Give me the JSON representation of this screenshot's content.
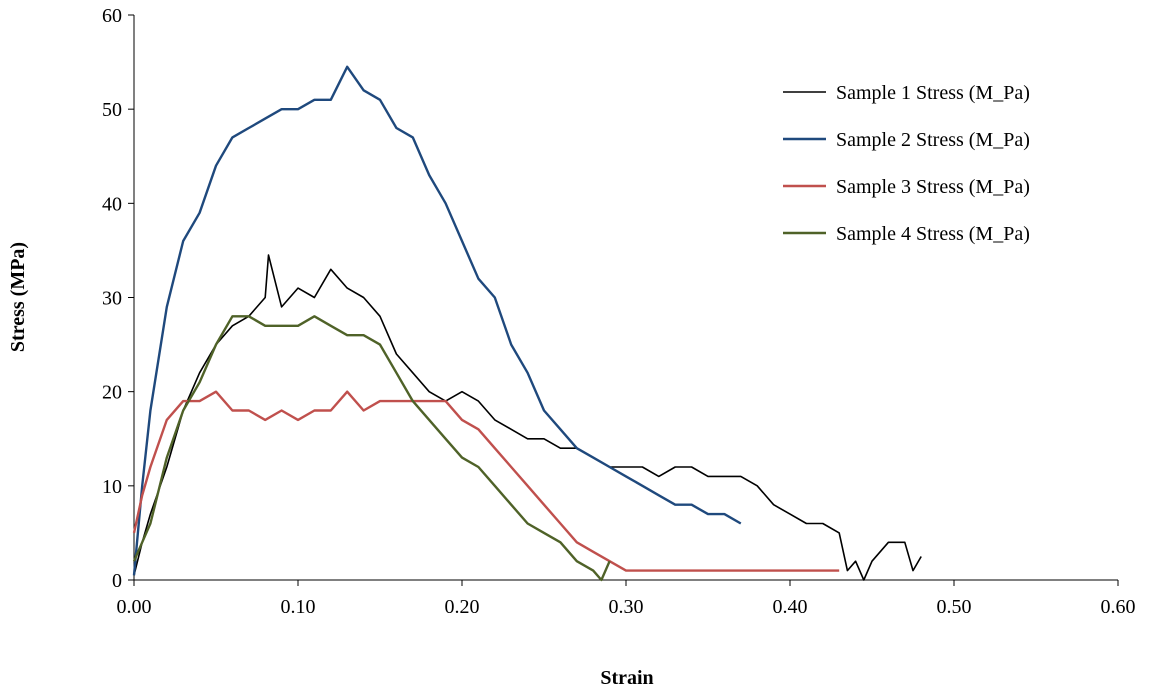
{
  "chart_data": {
    "type": "line",
    "xlabel": "Strain",
    "ylabel": "Stress (MPa)",
    "xlim": [
      0,
      0.6
    ],
    "ylim": [
      0,
      60
    ],
    "x_ticks": [
      "0.00",
      "0.10",
      "0.20",
      "0.30",
      "0.40",
      "0.50",
      "0.60"
    ],
    "y_ticks": [
      "0",
      "10",
      "20",
      "30",
      "40",
      "50",
      "60"
    ],
    "grid": false,
    "legend_position": "top-right",
    "series": [
      {
        "name": "Sample 1 Stress (M_Pa)",
        "color": "#000000",
        "x": [
          0.0,
          0.005,
          0.01,
          0.02,
          0.03,
          0.04,
          0.05,
          0.06,
          0.07,
          0.08,
          0.082,
          0.09,
          0.1,
          0.11,
          0.12,
          0.13,
          0.14,
          0.15,
          0.16,
          0.17,
          0.18,
          0.19,
          0.2,
          0.21,
          0.22,
          0.23,
          0.24,
          0.25,
          0.26,
          0.27,
          0.28,
          0.29,
          0.3,
          0.31,
          0.32,
          0.33,
          0.34,
          0.35,
          0.36,
          0.37,
          0.38,
          0.39,
          0.4,
          0.41,
          0.42,
          0.43,
          0.435,
          0.44,
          0.445,
          0.45,
          0.46,
          0.47,
          0.475,
          0.48
        ],
        "y": [
          0.5,
          4,
          7,
          12,
          18,
          22,
          25,
          27,
          28,
          30,
          34.5,
          29,
          31,
          30,
          33,
          31,
          30,
          28,
          24,
          22,
          20,
          19,
          20,
          19,
          17,
          16,
          15,
          15,
          14,
          14,
          13,
          12,
          12,
          12,
          11,
          12,
          12,
          11,
          11,
          11,
          10,
          8,
          7,
          6,
          6,
          5,
          1,
          2,
          0,
          2,
          4,
          4,
          1,
          2.5
        ]
      },
      {
        "name": "Sample 2 Stress (M_Pa)",
        "color": "#1F497D",
        "x": [
          0.0,
          0.005,
          0.01,
          0.02,
          0.03,
          0.04,
          0.05,
          0.06,
          0.07,
          0.08,
          0.09,
          0.1,
          0.11,
          0.12,
          0.13,
          0.14,
          0.15,
          0.16,
          0.17,
          0.18,
          0.19,
          0.2,
          0.21,
          0.22,
          0.23,
          0.24,
          0.25,
          0.26,
          0.27,
          0.28,
          0.29,
          0.3,
          0.31,
          0.32,
          0.33,
          0.34,
          0.35,
          0.36,
          0.37
        ],
        "y": [
          0.5,
          10,
          18,
          29,
          36,
          39,
          44,
          47,
          48,
          49,
          50,
          50,
          51,
          51,
          54.5,
          52,
          51,
          48,
          47,
          43,
          40,
          36,
          32,
          30,
          25,
          22,
          18,
          16,
          14,
          13,
          12,
          11,
          10,
          9,
          8,
          8,
          7,
          7,
          6
        ]
      },
      {
        "name": "Sample 3 Stress (M_Pa)",
        "color": "#C0504D",
        "x": [
          0.0,
          0.005,
          0.01,
          0.02,
          0.03,
          0.04,
          0.05,
          0.06,
          0.07,
          0.08,
          0.09,
          0.1,
          0.11,
          0.12,
          0.13,
          0.14,
          0.15,
          0.16,
          0.17,
          0.18,
          0.19,
          0.2,
          0.21,
          0.22,
          0.23,
          0.24,
          0.25,
          0.26,
          0.27,
          0.28,
          0.29,
          0.3,
          0.31,
          0.32,
          0.33,
          0.34,
          0.35,
          0.36,
          0.37,
          0.38,
          0.39,
          0.4,
          0.41,
          0.42,
          0.43
        ],
        "y": [
          5,
          9,
          12,
          17,
          19,
          19,
          20,
          18,
          18,
          17,
          18,
          17,
          18,
          18,
          20,
          18,
          19,
          19,
          19,
          19,
          19,
          17,
          16,
          14,
          12,
          10,
          8,
          6,
          4,
          3,
          2,
          1,
          1,
          1,
          1,
          1,
          1,
          1,
          1,
          1,
          1,
          1,
          1,
          1,
          1
        ]
      },
      {
        "name": "Sample 4 Stress (M_Pa)",
        "color": "#4F6228",
        "x": [
          0.0,
          0.005,
          0.01,
          0.02,
          0.03,
          0.04,
          0.05,
          0.06,
          0.07,
          0.08,
          0.09,
          0.1,
          0.11,
          0.12,
          0.13,
          0.14,
          0.15,
          0.16,
          0.17,
          0.18,
          0.19,
          0.2,
          0.21,
          0.22,
          0.23,
          0.24,
          0.25,
          0.26,
          0.27,
          0.28,
          0.285,
          0.29
        ],
        "y": [
          2,
          4,
          6,
          13,
          18,
          21,
          25,
          28,
          28,
          27,
          27,
          27,
          28,
          27,
          26,
          26,
          25,
          22,
          19,
          17,
          15,
          13,
          12,
          10,
          8,
          6,
          5,
          4,
          2,
          1,
          0,
          2
        ]
      }
    ]
  }
}
